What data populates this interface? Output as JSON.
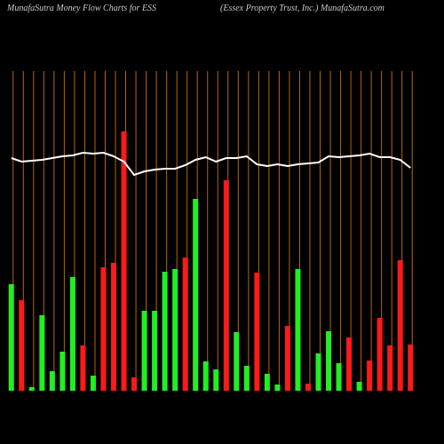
{
  "chart_data": {
    "type": "bar",
    "title": "MunafaSutra  Money Flow  Charts for ESS",
    "subtitle": "(Essex Property Trust, Inc.) MunafaSutra.com",
    "categories": [
      null,
      null,
      null,
      null,
      null,
      null,
      null,
      null,
      null,
      null,
      null,
      null,
      null,
      null,
      null,
      null,
      null,
      null,
      null,
      null,
      null,
      null,
      null,
      null,
      null,
      null,
      null,
      null,
      null,
      null,
      null,
      null,
      null,
      null,
      null,
      null,
      null,
      null,
      null,
      null
    ],
    "values": [
      120,
      102,
      4,
      85,
      22,
      44,
      128,
      51,
      17,
      139,
      144,
      292,
      15,
      90,
      90,
      134,
      137,
      150,
      216,
      33,
      24,
      237,
      66,
      28,
      133,
      19,
      7,
      73,
      137,
      8,
      42,
      67,
      31,
      60,
      10,
      34,
      82,
      51,
      147,
      52
    ],
    "colors": [
      "#22ee22",
      "#ff1a1a",
      "#22ee22",
      "#22ee22",
      "#22ee22",
      "#22ee22",
      "#22ee22",
      "#ff1a1a",
      "#22ee22",
      "#ff1a1a",
      "#ff1a1a",
      "#ff1a1a",
      "#ff1a1a",
      "#22ee22",
      "#22ee22",
      "#22ee22",
      "#22ee22",
      "#ff1a1a",
      "#22ee22",
      "#22ee22",
      "#22ee22",
      "#ff1a1a",
      "#22ee22",
      "#22ee22",
      "#ff1a1a",
      "#22ee22",
      "#22ee22",
      "#ff1a1a",
      "#22ee22",
      "#ff1a1a",
      "#22ee22",
      "#22ee22",
      "#22ee22",
      "#ff1a1a",
      "#22ee22",
      "#ff1a1a",
      "#ff1a1a",
      "#ff1a1a",
      "#ff1a1a",
      "#ff1a1a"
    ],
    "line": {
      "color": "#ffffff",
      "values": [
        262,
        258,
        259,
        260,
        262,
        264,
        265,
        268,
        267,
        268,
        264,
        258,
        243,
        247,
        249,
        250,
        250,
        254,
        260,
        263,
        258,
        262,
        262,
        264,
        255,
        253,
        255,
        253,
        255,
        256,
        257,
        264,
        263,
        264,
        265,
        267,
        263,
        263,
        260,
        251
      ]
    },
    "ylim": [
      0,
      360
    ],
    "grid_color": "#b8650f"
  }
}
